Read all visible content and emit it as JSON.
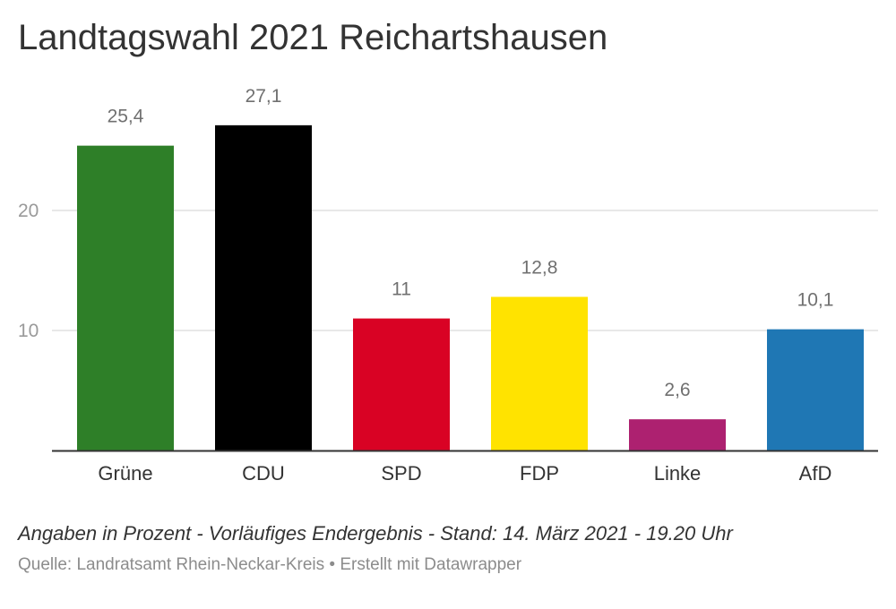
{
  "title": "Landtagswahl 2021 Reichartshausen",
  "note": "Angaben in Prozent - Vorläufiges Endergebnis - Stand: 14. März 2021 - 19.20 Uhr",
  "source": "Quelle: Landratsamt Rhein-Neckar-Kreis • Erstellt mit Datawrapper",
  "chart_data": {
    "type": "bar",
    "title": "Landtagswahl 2021 Reichartshausen",
    "categories": [
      "Grüne",
      "CDU",
      "SPD",
      "FDP",
      "Linke",
      "AfD"
    ],
    "values": [
      25.4,
      27.1,
      11,
      12.8,
      2.6,
      10.1
    ],
    "value_labels": [
      "25,4",
      "27,1",
      "11",
      "12,8",
      "2,6",
      "10,1"
    ],
    "colors": [
      "#2e7f28",
      "#000000",
      "#d90224",
      "#ffe300",
      "#ad2170",
      "#1f77b4"
    ],
    "yticks": [
      10,
      20
    ],
    "ylim": [
      0,
      27.1
    ],
    "grid": true,
    "xlabel": "",
    "ylabel": ""
  }
}
